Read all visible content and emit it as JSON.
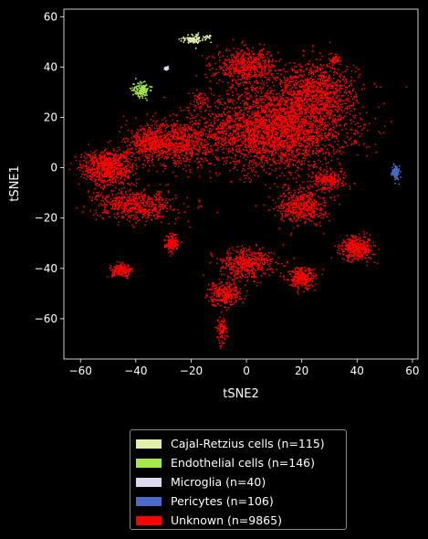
{
  "chart_data": {
    "type": "scatter",
    "xlabel": "tSNE2",
    "ylabel": "tSNE1",
    "xlim": [
      -66,
      62
    ],
    "ylim": [
      -76,
      63
    ],
    "xticks": [
      -60,
      -40,
      -20,
      0,
      20,
      40,
      60
    ],
    "yticks": [
      -60,
      -40,
      -20,
      0,
      20,
      40,
      60
    ],
    "grid": false,
    "legend_position": "bottom",
    "series": [
      {
        "name": "Cajal-Retzius cells (n=115)",
        "color": "#e0f0a8",
        "clusters": [
          {
            "center": [
              -19,
              51
            ],
            "spread": [
              3,
              1.5
            ],
            "n": 100
          },
          {
            "center": [
              -14,
              52
            ],
            "spread": [
              1.5,
              1
            ],
            "n": 15
          }
        ]
      },
      {
        "name": "Endothelial cells (n=146)",
        "color": "#a6e84a",
        "clusters": [
          {
            "center": [
              -38,
              31
            ],
            "spread": [
              2.5,
              2.5
            ],
            "n": 146
          }
        ]
      },
      {
        "name": "Microglia (n=40)",
        "color": "#dcd8f2",
        "clusters": [
          {
            "center": [
              -29,
              39.5
            ],
            "spread": [
              0.5,
              0.6
            ],
            "n": 40
          }
        ]
      },
      {
        "name": "Pericytes (n=106)",
        "color": "#4a6cc8",
        "clusters": [
          {
            "center": [
              54,
              -2
            ],
            "spread": [
              1.2,
              2.5
            ],
            "n": 106
          }
        ]
      },
      {
        "name": "Unknown (n=9865)",
        "color": "#ff0000",
        "clusters": [
          {
            "center": [
              10,
              15
            ],
            "spread": [
              22,
              13
            ],
            "n": 3000
          },
          {
            "center": [
              0,
              40
            ],
            "spread": [
              9,
              6
            ],
            "n": 600
          },
          {
            "center": [
              25,
              30
            ],
            "spread": [
              12,
              10
            ],
            "n": 1000
          },
          {
            "center": [
              -25,
              10
            ],
            "spread": [
              10,
              8
            ],
            "n": 700
          },
          {
            "center": [
              -50,
              0
            ],
            "spread": [
              8,
              6
            ],
            "n": 800
          },
          {
            "center": [
              -40,
              -15
            ],
            "spread": [
              12,
              5
            ],
            "n": 600
          },
          {
            "center": [
              20,
              -15
            ],
            "spread": [
              7,
              6
            ],
            "n": 500
          },
          {
            "center": [
              40,
              -32
            ],
            "spread": [
              5,
              4
            ],
            "n": 400
          },
          {
            "center": [
              0,
              -38
            ],
            "spread": [
              8,
              5
            ],
            "n": 500
          },
          {
            "center": [
              20,
              -44
            ],
            "spread": [
              4,
              3.5
            ],
            "n": 300
          },
          {
            "center": [
              -45,
              -41
            ],
            "spread": [
              3,
              2
            ],
            "n": 200
          },
          {
            "center": [
              -8,
              -50
            ],
            "spread": [
              5,
              4
            ],
            "n": 300
          },
          {
            "center": [
              -27,
              -30
            ],
            "spread": [
              2,
              3
            ],
            "n": 150
          },
          {
            "center": [
              -9,
              -65
            ],
            "spread": [
              1.5,
              4
            ],
            "n": 100
          },
          {
            "center": [
              -35,
              10
            ],
            "spread": [
              6,
              5
            ],
            "n": 400
          },
          {
            "center": [
              30,
              -5
            ],
            "spread": [
              5,
              3
            ],
            "n": 215
          },
          {
            "center": [
              32,
              43
            ],
            "spread": [
              1.5,
              1.5
            ],
            "n": 50
          },
          {
            "center": [
              -17,
              27
            ],
            "spread": [
              2,
              3
            ],
            "n": 50
          }
        ]
      }
    ]
  }
}
